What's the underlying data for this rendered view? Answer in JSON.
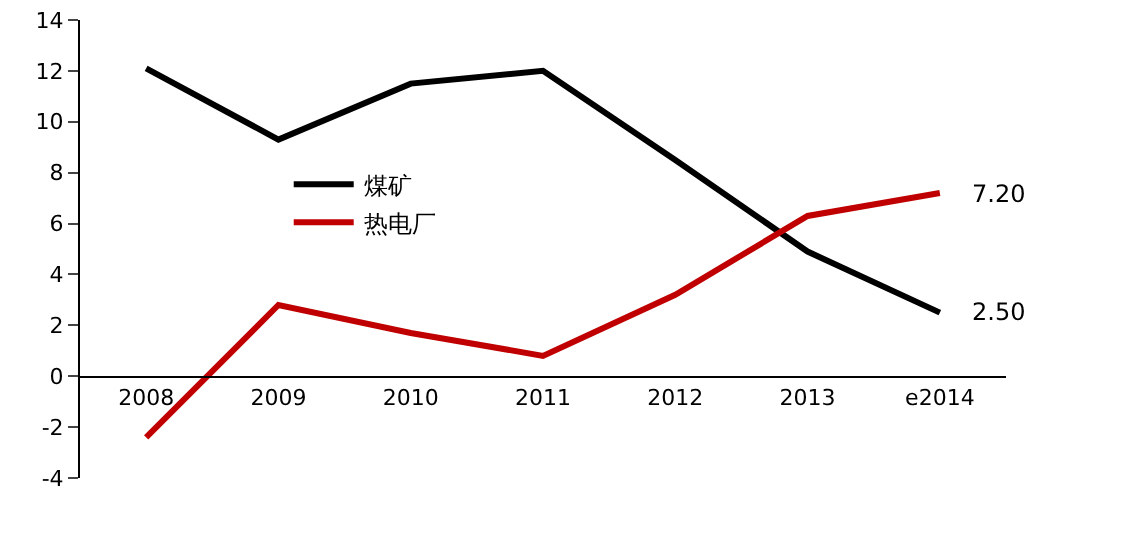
{
  "chart_data": {
    "type": "line",
    "categories": [
      "2008",
      "2009",
      "2010",
      "2011",
      "2012",
      "2013",
      "e2014"
    ],
    "series": [
      {
        "name": "煤矿",
        "color": "#000000",
        "values": [
          12.1,
          9.3,
          11.5,
          12.0,
          8.5,
          4.9,
          2.5
        ]
      },
      {
        "name": "热电厂",
        "color": "#c00000",
        "values": [
          -2.4,
          2.8,
          1.7,
          0.8,
          3.2,
          6.3,
          7.2
        ]
      }
    ],
    "ylim": [
      -4,
      14
    ],
    "yticks": [
      -4,
      -2,
      0,
      2,
      4,
      6,
      8,
      10,
      12,
      14
    ],
    "grid": false,
    "legend": "left",
    "marker": "none",
    "line_style": "solid",
    "annotations": [
      {
        "text": "7.20",
        "x": "e2014",
        "y": 7.2
      },
      {
        "text": "2.50",
        "x": "e2014",
        "y": 2.5
      }
    ]
  }
}
